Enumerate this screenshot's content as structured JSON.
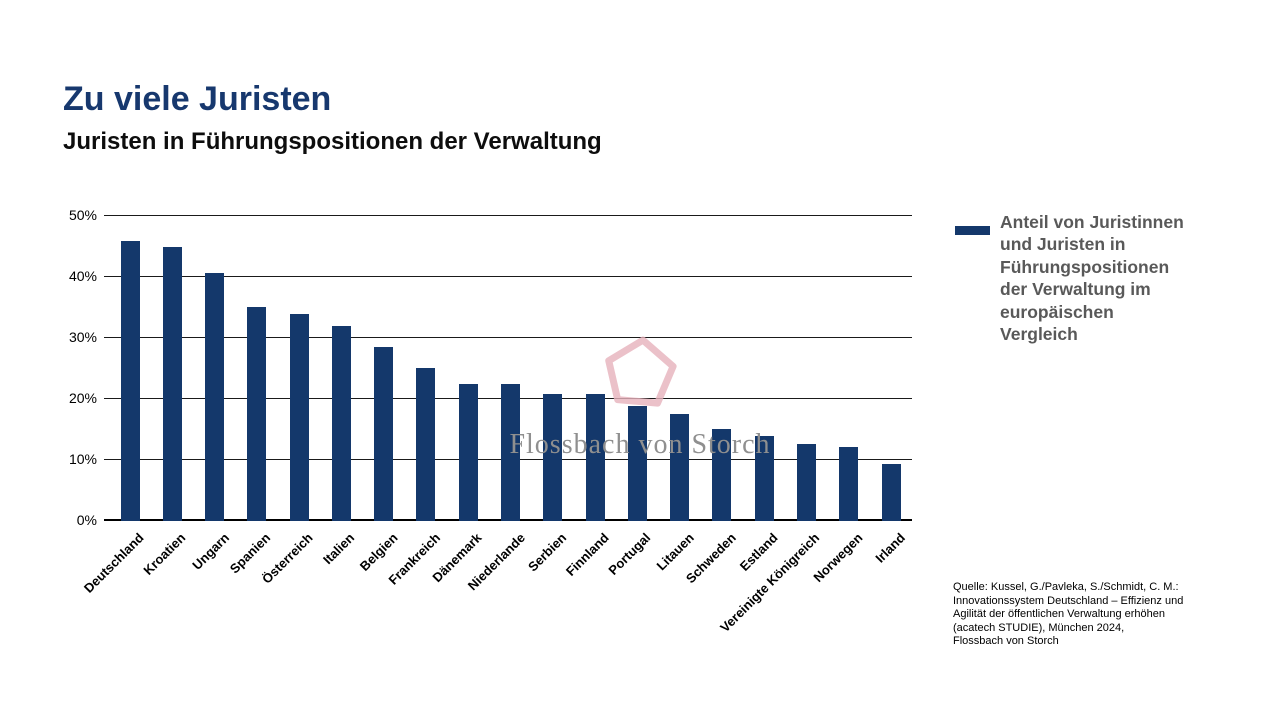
{
  "header": {
    "title": "Zu viele Juristen",
    "subtitle": "Juristen in Führungspositionen der Verwaltung"
  },
  "legend": {
    "label": "Anteil von Juristinnen\nund Juristen in\nFührungspositionen\nder Verwaltung im\neuropäischen\nVergleich"
  },
  "watermark": {
    "text": "Flossbach von Storch",
    "shape": "pentagon-logo"
  },
  "source": {
    "text": "Quelle: Kussel, G./Pavleka, S./Schmidt, C. M.:\nInnovationssystem Deutschland – Effizienz und\nAgilität der öffentlichen Verwaltung erhöhen\n(acatech STUDIE), München 2024,\nFlossbach von Storch"
  },
  "colors": {
    "bar": "#14386b",
    "title": "#17386e",
    "legend_text": "#595959",
    "watermark_pink": "#e7b2bc",
    "watermark_text": "#8f8f8f",
    "gridline": "#1a1a1a"
  },
  "chart_data": {
    "type": "bar",
    "title": "Zu viele Juristen",
    "subtitle": "Juristen in Führungspositionen der Verwaltung",
    "categories": [
      "Deutschland",
      "Kroatien",
      "Ungarn",
      "Spanien",
      "Österreich",
      "Italien",
      "Belgien",
      "Frankreich",
      "Dänemark",
      "Niederlande",
      "Serbien",
      "Finnland",
      "Portugal",
      "Litauen",
      "Schweden",
      "Estland",
      "Vereinigte Königreich",
      "Norwegen",
      "Irland"
    ],
    "values": [
      45.9,
      44.9,
      40.7,
      35.0,
      34.0,
      31.9,
      28.5,
      25.0,
      22.4,
      22.4,
      20.9,
      20.9,
      18.9,
      17.6,
      15.0,
      14.0,
      12.6,
      12.1,
      9.4
    ],
    "unit": "%",
    "ylim": [
      0,
      50
    ],
    "yticks": [
      0,
      10,
      20,
      30,
      40,
      50
    ],
    "ytick_labels": [
      "0%",
      "10%",
      "20%",
      "30%",
      "40%",
      "50%"
    ],
    "xlabel": "",
    "ylabel": "",
    "grid": true,
    "legend_position": "right",
    "legend_entries": [
      "Anteil von Juristinnen und Juristen in Führungspositionen der Verwaltung im europäischen Vergleich"
    ]
  }
}
